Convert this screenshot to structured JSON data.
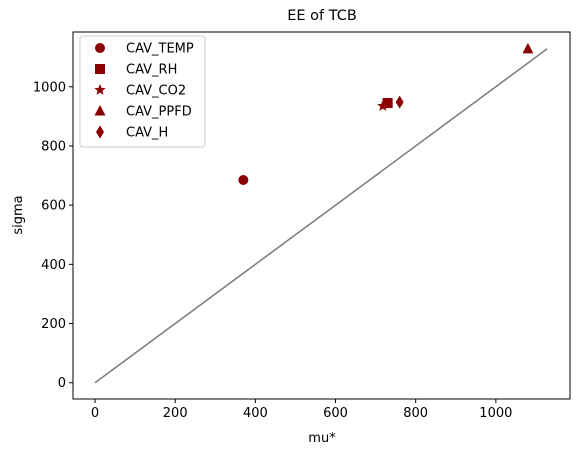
{
  "chart_data": {
    "type": "scatter",
    "title": "EE of TCB",
    "xlabel": "mu*",
    "ylabel": "sigma",
    "xlim": [
      -55,
      1185
    ],
    "ylim": [
      -55,
      1185
    ],
    "xticks": [
      0,
      200,
      400,
      600,
      800,
      1000
    ],
    "yticks": [
      0,
      200,
      400,
      600,
      800,
      1000
    ],
    "grid": false,
    "legend_position": "top-left",
    "marker_color": "#8b0000",
    "line_color": "#808080",
    "series": [
      {
        "name": "CAV_TEMP",
        "marker": "circle",
        "x": 370,
        "y": 685
      },
      {
        "name": "CAV_RH",
        "marker": "square",
        "x": 730,
        "y": 945
      },
      {
        "name": "CAV_CO2",
        "marker": "star",
        "x": 718,
        "y": 935
      },
      {
        "name": "CAV_PPFD",
        "marker": "triangle",
        "x": 1080,
        "y": 1128
      },
      {
        "name": "CAV_H",
        "marker": "diamond",
        "x": 760,
        "y": 948
      }
    ],
    "reference_line": {
      "x": [
        0,
        1128
      ],
      "y": [
        0,
        1128
      ]
    }
  }
}
